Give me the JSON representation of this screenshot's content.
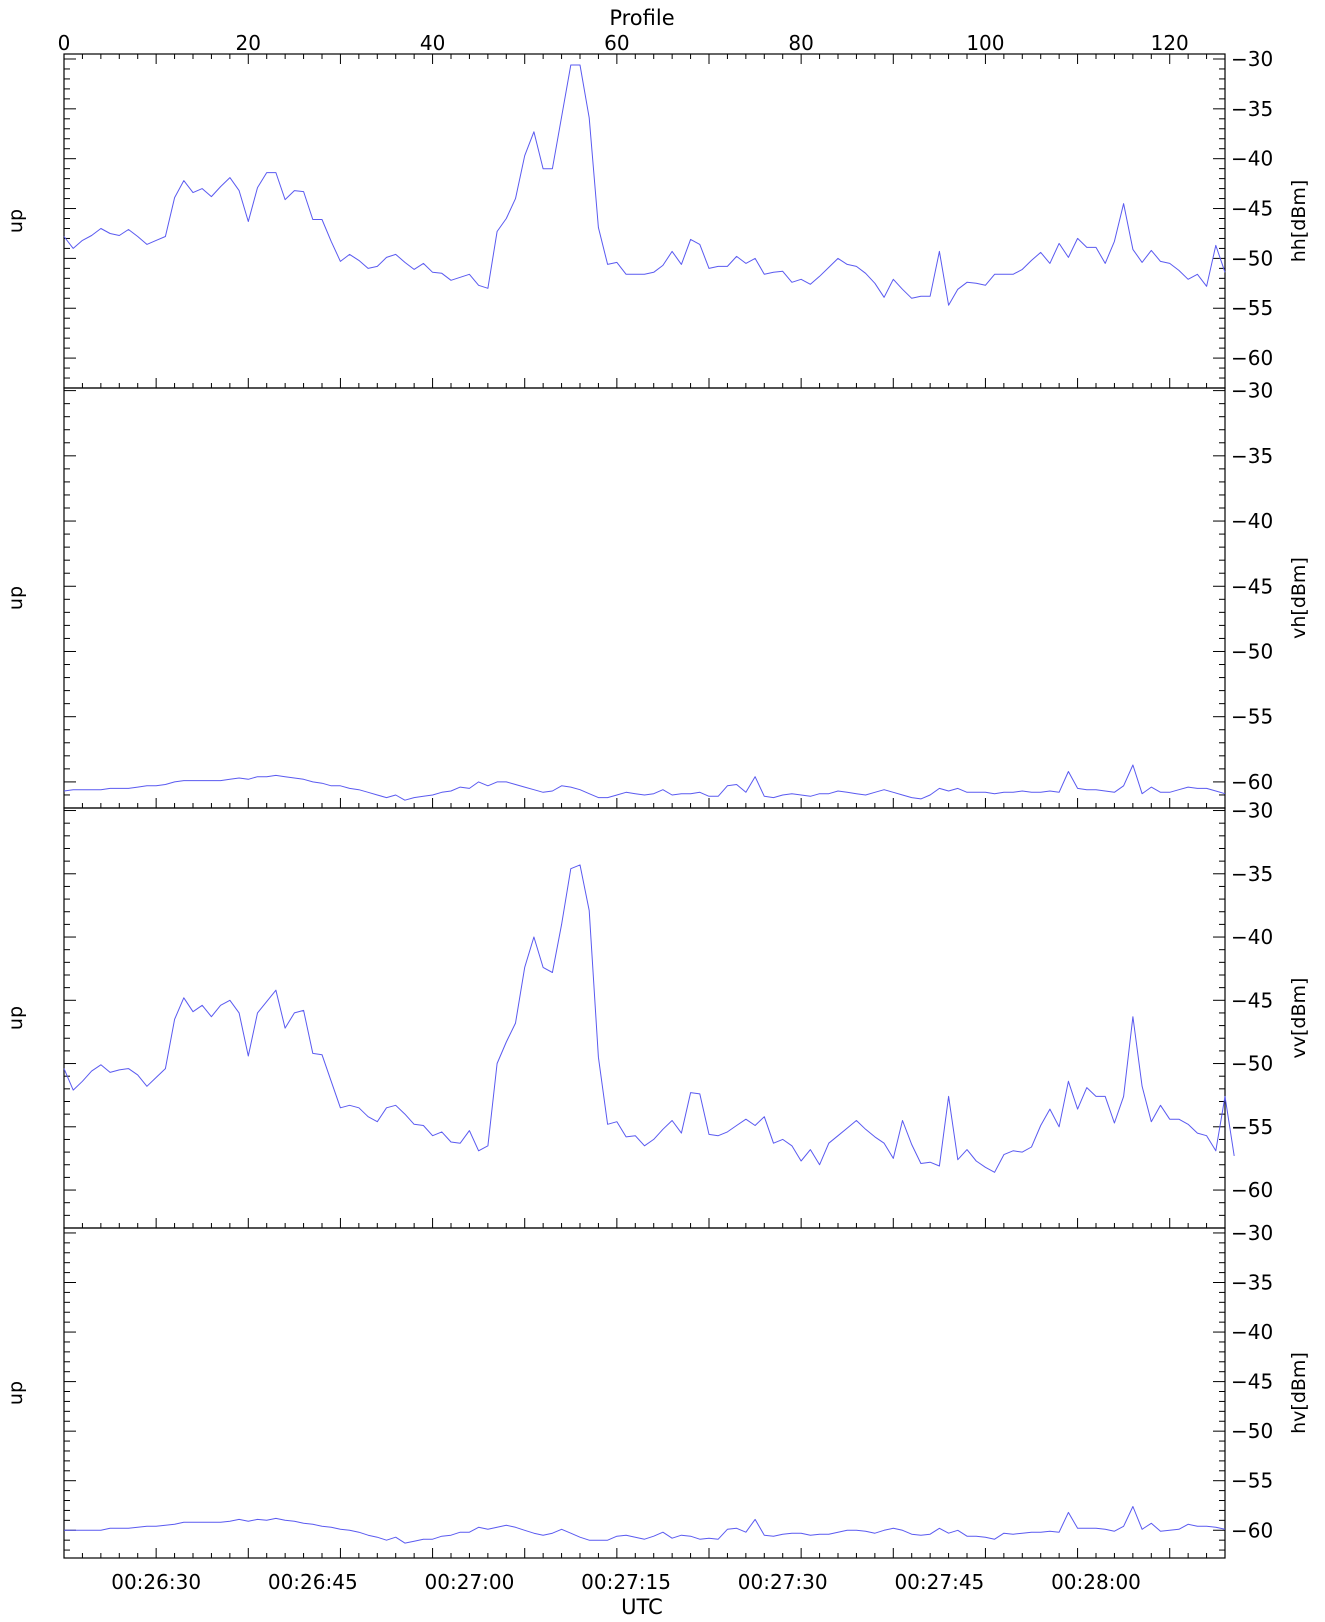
{
  "top_axis": {
    "label": "Profile",
    "ticks": [
      0,
      20,
      40,
      60,
      80,
      100,
      120
    ],
    "range": [
      0,
      126
    ]
  },
  "bottom_axis": {
    "label": "UTC",
    "ticks": [
      "00:26:30",
      "00:26:45",
      "00:27:00",
      "00:27:15",
      "00:27:30",
      "00:27:45",
      "00:28:00"
    ],
    "tick_profiles": [
      10,
      27,
      44,
      61,
      78,
      95,
      112
    ]
  },
  "colors": {
    "line": "#5a5af0",
    "axis": "#000000",
    "background": "#ffffff"
  },
  "chart_data": [
    {
      "type": "line",
      "left_label": "up",
      "ylabel": "hh[dBm]",
      "ylim": [
        -63,
        -29.5
      ],
      "yticks": [
        -30,
        -35,
        -40,
        -45,
        -50,
        -55,
        -60
      ],
      "x": "profile index 0-126",
      "series": [
        {
          "values": [
            -47.8,
            -49.0,
            -48.2,
            -47.7,
            -47.0,
            -47.5,
            -47.7,
            -47.1,
            -47.8,
            -48.6,
            -48.2,
            -47.8,
            -43.9,
            -42.2,
            -43.4,
            -43.0,
            -43.8,
            -42.8,
            -41.9,
            -43.2,
            -46.3,
            -42.9,
            -41.4,
            -41.4,
            -44.1,
            -43.2,
            -43.3,
            -46.1,
            -46.1,
            -48.3,
            -50.3,
            -49.6,
            -50.2,
            -51.0,
            -50.8,
            -49.9,
            -49.6,
            -50.4,
            -51.1,
            -50.5,
            -51.4,
            -51.5,
            -52.2,
            -51.9,
            -51.6,
            -52.7,
            -53.0,
            -47.3,
            -46.0,
            -44.0,
            -39.7,
            -37.3,
            -41.0,
            -41.0,
            -35.8,
            -30.6,
            -30.6,
            -35.9,
            -46.9,
            -50.6,
            -50.4,
            -51.6,
            -51.6,
            -51.6,
            -51.4,
            -50.7,
            -49.3,
            -50.6,
            -48.1,
            -48.6,
            -51.0,
            -50.8,
            -50.8,
            -49.8,
            -50.5,
            -50.0,
            -51.6,
            -51.4,
            -51.3,
            -52.4,
            -52.1,
            -52.6,
            -51.8,
            -50.9,
            -50.0,
            -50.6,
            -50.8,
            -51.5,
            -52.5,
            -53.9,
            -52.1,
            -53.1,
            -54.0,
            -53.8,
            -53.8,
            -49.3,
            -54.7,
            -53.1,
            -52.4,
            -52.5,
            -52.7,
            -51.6,
            -51.6,
            -51.6,
            -51.1,
            -50.2,
            -49.4,
            -50.5,
            -48.5,
            -49.9,
            -48.0,
            -48.9,
            -48.9,
            -50.5,
            -48.3,
            -44.5,
            -49.1,
            -50.4,
            -49.2,
            -50.3,
            -50.5,
            -51.2,
            -52.1,
            -51.6,
            -52.8,
            -48.7,
            -51.4
          ]
        }
      ]
    },
    {
      "type": "line",
      "left_label": "up",
      "ylabel": "vh[dBm]",
      "ylim": [
        -62.0,
        -29.8
      ],
      "yticks": [
        -30,
        -35,
        -40,
        -45,
        -50,
        -55,
        -60
      ],
      "x": "profile index 0-126",
      "series": [
        {
          "values": [
            -60.7,
            -60.6,
            -60.6,
            -60.6,
            -60.6,
            -60.5,
            -60.5,
            -60.5,
            -60.4,
            -60.3,
            -60.3,
            -60.2,
            -60.0,
            -59.9,
            -59.9,
            -59.9,
            -59.9,
            -59.9,
            -59.8,
            -59.7,
            -59.8,
            -59.6,
            -59.6,
            -59.5,
            -59.6,
            -59.7,
            -59.8,
            -60.0,
            -60.1,
            -60.3,
            -60.3,
            -60.5,
            -60.6,
            -60.8,
            -61.0,
            -61.2,
            -61.0,
            -61.4,
            -61.2,
            -61.1,
            -61.0,
            -60.8,
            -60.7,
            -60.4,
            -60.5,
            -60.0,
            -60.3,
            -60.0,
            -60.0,
            -60.2,
            -60.4,
            -60.6,
            -60.8,
            -60.7,
            -60.3,
            -60.4,
            -60.6,
            -60.9,
            -61.2,
            -61.2,
            -61.0,
            -60.8,
            -60.9,
            -61.0,
            -60.9,
            -60.6,
            -61.0,
            -60.9,
            -60.9,
            -60.8,
            -61.1,
            -61.1,
            -60.3,
            -60.2,
            -60.8,
            -59.6,
            -61.1,
            -61.2,
            -61.0,
            -60.9,
            -61.0,
            -61.1,
            -60.9,
            -60.9,
            -60.7,
            -60.8,
            -60.9,
            -61.0,
            -60.8,
            -60.6,
            -60.8,
            -61.0,
            -61.2,
            -61.3,
            -61.0,
            -60.5,
            -60.7,
            -60.5,
            -60.8,
            -60.8,
            -60.8,
            -60.9,
            -60.8,
            -60.8,
            -60.7,
            -60.8,
            -60.8,
            -60.7,
            -60.8,
            -59.2,
            -60.5,
            -60.6,
            -60.6,
            -60.7,
            -60.8,
            -60.3,
            -58.7,
            -60.9,
            -60.4,
            -60.8,
            -60.8,
            -60.6,
            -60.4,
            -60.5,
            -60.5,
            -60.7,
            -60.9
          ]
        }
      ]
    },
    {
      "type": "line",
      "left_label": "up",
      "ylabel": "vv[dBm]",
      "ylim": [
        -63,
        -29.8
      ],
      "yticks": [
        -30,
        -35,
        -40,
        -45,
        -50,
        -55,
        -60
      ],
      "x": "profile index 0-126",
      "series": [
        {
          "values": [
            -50.4,
            -52.1,
            -51.4,
            -50.6,
            -50.1,
            -50.7,
            -50.5,
            -50.4,
            -50.9,
            -51.8,
            -51.1,
            -50.4,
            -46.5,
            -44.8,
            -45.9,
            -45.4,
            -46.3,
            -45.4,
            -45.0,
            -46.0,
            -49.4,
            -46.0,
            -45.1,
            -44.2,
            -47.2,
            -46.0,
            -45.8,
            -49.2,
            -49.3,
            -51.4,
            -53.5,
            -53.3,
            -53.5,
            -54.2,
            -54.6,
            -53.5,
            -53.3,
            -54.0,
            -54.8,
            -54.9,
            -55.7,
            -55.4,
            -56.2,
            -56.3,
            -55.3,
            -56.9,
            -56.5,
            -50.0,
            -48.3,
            -46.8,
            -42.4,
            -40.0,
            -42.4,
            -42.8,
            -39.0,
            -34.6,
            -34.3,
            -37.9,
            -49.5,
            -54.8,
            -54.6,
            -55.8,
            -55.7,
            -56.5,
            -56.0,
            -55.2,
            -54.5,
            -55.5,
            -52.3,
            -52.4,
            -55.6,
            -55.7,
            -55.4,
            -54.9,
            -54.4,
            -54.9,
            -54.2,
            -56.3,
            -56.0,
            -56.5,
            -57.7,
            -56.8,
            -58.0,
            -56.3,
            -55.7,
            -55.1,
            -54.5,
            -55.2,
            -55.8,
            -56.3,
            -57.5,
            -54.5,
            -56.4,
            -57.9,
            -57.8,
            -58.1,
            -52.6,
            -57.6,
            -56.8,
            -57.7,
            -58.2,
            -58.6,
            -57.2,
            -56.9,
            -57.0,
            -56.6,
            -54.9,
            -53.6,
            -55.0,
            -51.4,
            -53.6,
            -51.9,
            -52.6,
            -52.6,
            -54.7,
            -52.6,
            -46.3,
            -51.8,
            -54.6,
            -53.3,
            -54.4,
            -54.4,
            -54.8,
            -55.5,
            -55.7,
            -56.9,
            -52.6,
            -57.3
          ]
        }
      ]
    },
    {
      "type": "line",
      "left_label": "up",
      "ylabel": "hv[dBm]",
      "ylim": [
        -62.8,
        -29.5
      ],
      "yticks": [
        -30,
        -35,
        -40,
        -45,
        -50,
        -55,
        -60
      ],
      "x": "profile index 0-126",
      "series": [
        {
          "values": [
            -60.0,
            -60.0,
            -60.0,
            -60.0,
            -60.0,
            -59.8,
            -59.8,
            -59.8,
            -59.7,
            -59.6,
            -59.6,
            -59.5,
            -59.4,
            -59.2,
            -59.2,
            -59.2,
            -59.2,
            -59.2,
            -59.1,
            -58.9,
            -59.1,
            -58.9,
            -59.0,
            -58.8,
            -59.0,
            -59.1,
            -59.3,
            -59.4,
            -59.6,
            -59.7,
            -59.9,
            -60.0,
            -60.2,
            -60.5,
            -60.7,
            -61.0,
            -60.7,
            -61.3,
            -61.1,
            -60.9,
            -60.9,
            -60.6,
            -60.5,
            -60.2,
            -60.2,
            -59.7,
            -59.9,
            -59.7,
            -59.5,
            -59.7,
            -60.0,
            -60.3,
            -60.5,
            -60.3,
            -59.9,
            -60.3,
            -60.7,
            -61.0,
            -61.0,
            -61.0,
            -60.6,
            -60.5,
            -60.7,
            -60.9,
            -60.6,
            -60.2,
            -60.8,
            -60.5,
            -60.6,
            -60.9,
            -60.8,
            -60.9,
            -59.9,
            -59.8,
            -60.2,
            -58.9,
            -60.5,
            -60.6,
            -60.4,
            -60.3,
            -60.3,
            -60.5,
            -60.4,
            -60.4,
            -60.2,
            -60.0,
            -60.0,
            -60.1,
            -60.3,
            -60.0,
            -59.8,
            -60.0,
            -60.4,
            -60.5,
            -60.4,
            -59.8,
            -60.3,
            -60.0,
            -60.6,
            -60.6,
            -60.7,
            -60.9,
            -60.3,
            -60.4,
            -60.3,
            -60.2,
            -60.2,
            -60.1,
            -60.2,
            -58.2,
            -59.8,
            -59.8,
            -59.8,
            -59.9,
            -60.1,
            -59.6,
            -57.6,
            -59.9,
            -59.3,
            -60.1,
            -60.0,
            -59.9,
            -59.4,
            -59.6,
            -59.6,
            -59.7,
            -59.9
          ]
        }
      ]
    }
  ]
}
